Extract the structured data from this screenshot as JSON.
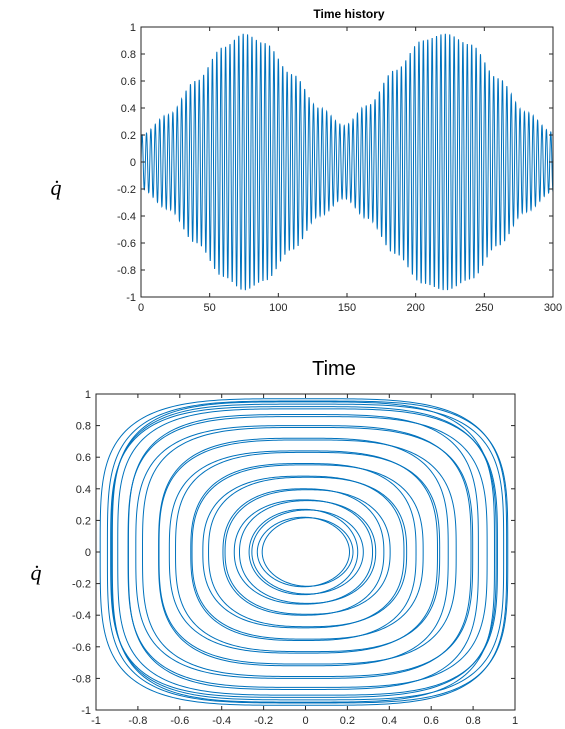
{
  "chart_data": [
    {
      "type": "line",
      "title": "Time history",
      "xlabel": "Time",
      "ylabel": "q̇",
      "xlim": [
        0,
        300
      ],
      "ylim": [
        -1,
        1
      ],
      "xticks": [
        "0",
        "50",
        "100",
        "150",
        "200",
        "250",
        "300"
      ],
      "yticks": [
        "-1",
        "-0.8",
        "-0.6",
        "-0.4",
        "-0.2",
        "0",
        "0.2",
        "0.4",
        "0.6",
        "0.8",
        "1"
      ],
      "grid": false,
      "series": [
        {
          "color": "#0072BD",
          "envelope_t": [
            0,
            20,
            40,
            60,
            75,
            90,
            110,
            130,
            148,
            165,
            185,
            205,
            222,
            240,
            260,
            280,
            300
          ],
          "envelope_amp": [
            0.2,
            0.35,
            0.6,
            0.85,
            0.95,
            0.88,
            0.65,
            0.4,
            0.27,
            0.42,
            0.68,
            0.9,
            0.95,
            0.87,
            0.62,
            0.37,
            0.22
          ],
          "oscillation_period": 3.2
        }
      ]
    },
    {
      "type": "line",
      "xlabel": "",
      "ylabel": "q̇",
      "xlim": [
        -1,
        1
      ],
      "ylim": [
        -1,
        1
      ],
      "xticks": [
        "-1",
        "-0.8",
        "-0.6",
        "-0.4",
        "-0.2",
        "0",
        "0.2",
        "0.4",
        "0.6",
        "0.8",
        "1"
      ],
      "yticks": [
        "-1",
        "-0.8",
        "-0.6",
        "-0.4",
        "-0.2",
        "0",
        "0.2",
        "0.4",
        "0.6",
        "0.8",
        "1"
      ],
      "grid": false,
      "series": [
        {
          "color": "#0072BD",
          "orbit_amplitudes": [
            0.22,
            0.27,
            0.33,
            0.4,
            0.48,
            0.56,
            0.64,
            0.72,
            0.8,
            0.87,
            0.92,
            0.95,
            0.97
          ]
        }
      ]
    }
  ]
}
